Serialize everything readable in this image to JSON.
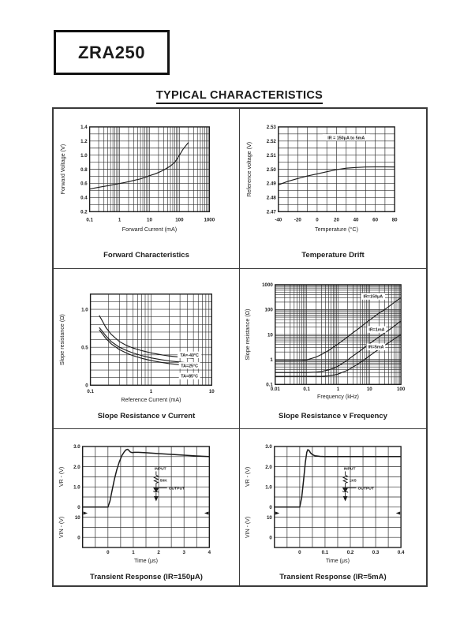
{
  "page": {
    "part_number": "ZRA250",
    "section_title": "TYPICAL CHARACTERISTICS"
  },
  "colors": {
    "ink": "#1c1c1c",
    "paper": "#ffffff"
  },
  "chart_data": [
    {
      "id": "forward-characteristics",
      "type": "line",
      "title": "Forward Characteristics",
      "xlabel": "Forward Current (mA)",
      "ylabel": "Forward Voltage (V)",
      "x_axis": {
        "scale": "log",
        "min": 0.1,
        "max": 1000,
        "ticks": [
          {
            "v": 0.1,
            "t": "0.1"
          },
          {
            "v": 1,
            "t": "1"
          },
          {
            "v": 10,
            "t": "10"
          },
          {
            "v": 100,
            "t": "100"
          },
          {
            "v": 1000,
            "t": "1000"
          }
        ]
      },
      "y_axis": {
        "scale": "linear",
        "min": 0.2,
        "max": 1.4,
        "step": 0.1,
        "ticks": [
          {
            "v": 0.2,
            "t": "0.2"
          },
          {
            "v": 0.4,
            "t": "0.4"
          },
          {
            "v": 0.6,
            "t": "0.6"
          },
          {
            "v": 0.8,
            "t": "0.8"
          },
          {
            "v": 1.0,
            "t": "1.0"
          },
          {
            "v": 1.2,
            "t": "1.2"
          },
          {
            "v": 1.4,
            "t": "1.4"
          }
        ]
      },
      "series": [
        {
          "name": "forward-voltage",
          "points": [
            [
              0.1,
              0.52
            ],
            [
              0.15,
              0.535
            ],
            [
              0.2,
              0.545
            ],
            [
              0.3,
              0.558
            ],
            [
              0.5,
              0.575
            ],
            [
              0.7,
              0.588
            ],
            [
              1,
              0.6
            ],
            [
              1.5,
              0.613
            ],
            [
              2,
              0.625
            ],
            [
              3,
              0.643
            ],
            [
              5,
              0.665
            ],
            [
              7,
              0.685
            ],
            [
              10,
              0.71
            ],
            [
              15,
              0.733
            ],
            [
              20,
              0.755
            ],
            [
              30,
              0.79
            ],
            [
              50,
              0.845
            ],
            [
              70,
              0.9
            ],
            [
              100,
              1.0
            ],
            [
              130,
              1.08
            ],
            [
              160,
              1.13
            ],
            [
              200,
              1.18
            ]
          ]
        }
      ]
    },
    {
      "id": "temperature-drift",
      "type": "line",
      "title": "Temperature Drift",
      "xlabel": "Temperature (°C)",
      "ylabel": "Reference voltage (V)",
      "x_axis": {
        "scale": "linear",
        "min": -40,
        "max": 80,
        "step": 10,
        "ticks": [
          {
            "v": -40,
            "t": "-40"
          },
          {
            "v": -20,
            "t": "-20"
          },
          {
            "v": 0,
            "t": "0"
          },
          {
            "v": 20,
            "t": "20"
          },
          {
            "v": 40,
            "t": "40"
          },
          {
            "v": 60,
            "t": "60"
          },
          {
            "v": 80,
            "t": "80"
          }
        ]
      },
      "y_axis": {
        "scale": "linear",
        "min": 2.47,
        "max": 2.53,
        "step": 0.005,
        "ticks": [
          {
            "v": 2.47,
            "t": "2.47"
          },
          {
            "v": 2.48,
            "t": "2.48"
          },
          {
            "v": 2.49,
            "t": "2.49"
          },
          {
            "v": 2.5,
            "t": "2.50"
          },
          {
            "v": 2.51,
            "t": "2.51"
          },
          {
            "v": 2.52,
            "t": "2.52"
          },
          {
            "v": 2.53,
            "t": "2.53"
          }
        ]
      },
      "annotations": [
        {
          "t": "IR = 150μA to 5mA",
          "x": 30,
          "y": 2.5225
        }
      ],
      "series": [
        {
          "name": "reference-voltage",
          "points": [
            [
              -40,
              2.489
            ],
            [
              -30,
              2.4915
            ],
            [
              -20,
              2.4935
            ],
            [
              -10,
              2.4953
            ],
            [
              0,
              2.4968
            ],
            [
              10,
              2.4983
            ],
            [
              20,
              2.4997
            ],
            [
              30,
              2.5008
            ],
            [
              40,
              2.5013
            ],
            [
              50,
              2.5016
            ],
            [
              60,
              2.5017
            ],
            [
              70,
              2.5017
            ],
            [
              80,
              2.5016
            ]
          ]
        }
      ]
    },
    {
      "id": "slope-resistance-v-current",
      "type": "line",
      "title": "Slope Resistance v Current",
      "xlabel": "Reference Current (mA)",
      "ylabel": "Slope resistance  (Ω)",
      "x_axis": {
        "scale": "log",
        "min": 0.1,
        "max": 10,
        "ticks": [
          {
            "v": 0.1,
            "t": "0.1"
          },
          {
            "v": 1,
            "t": "1"
          },
          {
            "v": 10,
            "t": "10"
          }
        ]
      },
      "y_axis": {
        "scale": "linear",
        "min": 0,
        "max": 1.2,
        "step": 0.1,
        "ticks": [
          {
            "v": 0,
            "t": "0"
          },
          {
            "v": 0.5,
            "t": "0.5"
          },
          {
            "v": 1.0,
            "t": "1.0"
          }
        ]
      },
      "labels": [
        {
          "t": "TA=-40°C",
          "x": 4.3,
          "y": 0.4
        },
        {
          "t": "TA=25°C",
          "x": 4.3,
          "y": 0.26
        },
        {
          "t": "TA=85°C",
          "x": 4.3,
          "y": 0.12
        }
      ],
      "series": [
        {
          "name": "ta-minus-40c",
          "points": [
            [
              0.14,
              0.92
            ],
            [
              0.18,
              0.76
            ],
            [
              0.22,
              0.67
            ],
            [
              0.3,
              0.575
            ],
            [
              0.4,
              0.52
            ],
            [
              0.5,
              0.49
            ],
            [
              0.7,
              0.455
            ],
            [
              1,
              0.425
            ],
            [
              1.5,
              0.4
            ],
            [
              2,
              0.385
            ],
            [
              3,
              0.37
            ],
            [
              4,
              0.36
            ],
            [
              5,
              0.355
            ]
          ]
        },
        {
          "name": "ta-25c",
          "points": [
            [
              0.14,
              0.76
            ],
            [
              0.18,
              0.65
            ],
            [
              0.22,
              0.575
            ],
            [
              0.3,
              0.5
            ],
            [
              0.4,
              0.455
            ],
            [
              0.5,
              0.425
            ],
            [
              0.7,
              0.39
            ],
            [
              1,
              0.36
            ],
            [
              1.5,
              0.335
            ],
            [
              2,
              0.32
            ],
            [
              3,
              0.305
            ],
            [
              4,
              0.295
            ],
            [
              5,
              0.29
            ]
          ]
        },
        {
          "name": "ta-85c",
          "points": [
            [
              0.14,
              0.73
            ],
            [
              0.18,
              0.615
            ],
            [
              0.22,
              0.545
            ],
            [
              0.3,
              0.47
            ],
            [
              0.4,
              0.42
            ],
            [
              0.5,
              0.39
            ],
            [
              0.7,
              0.355
            ],
            [
              1,
              0.325
            ],
            [
              1.5,
              0.3
            ],
            [
              2,
              0.285
            ],
            [
              3,
              0.27
            ],
            [
              4,
              0.26
            ],
            [
              5,
              0.255
            ]
          ]
        }
      ]
    },
    {
      "id": "slope-resistance-v-frequency",
      "type": "line",
      "title": "Slope Resistance v Frequency",
      "xlabel": "Frequency (kHz)",
      "ylabel": "Slope resistance  (Ω)",
      "x_axis": {
        "scale": "log",
        "min": 0.01,
        "max": 100,
        "ticks": [
          {
            "v": 0.01,
            "t": "0.01"
          },
          {
            "v": 0.1,
            "t": "0.1"
          },
          {
            "v": 1,
            "t": "1"
          },
          {
            "v": 10,
            "t": "10"
          },
          {
            "v": 100,
            "t": "100"
          }
        ]
      },
      "y_axis": {
        "scale": "log",
        "min": 0.1,
        "max": 1000,
        "ticks": [
          {
            "v": 0.1,
            "t": "0.1"
          },
          {
            "v": 1,
            "t": "1"
          },
          {
            "v": 10,
            "t": "10"
          },
          {
            "v": 100,
            "t": "100"
          },
          {
            "v": 1000,
            "t": "1000"
          }
        ]
      },
      "labels": [
        {
          "t": "IR=150μA",
          "x": 13,
          "y": 340
        },
        {
          "t": "IR=1mA",
          "x": 17,
          "y": 16
        },
        {
          "t": "IR=5mA",
          "x": 16,
          "y": 3.2
        }
      ],
      "series": [
        {
          "name": "ir-150ua",
          "points": [
            [
              0.01,
              0.9
            ],
            [
              0.03,
              0.9
            ],
            [
              0.07,
              0.92
            ],
            [
              0.1,
              0.97
            ],
            [
              0.2,
              1.25
            ],
            [
              0.3,
              1.6
            ],
            [
              0.5,
              2.3
            ],
            [
              0.7,
              3.1
            ],
            [
              1,
              4.2
            ],
            [
              2,
              8
            ],
            [
              3,
              12
            ],
            [
              5,
              19
            ],
            [
              7,
              27
            ],
            [
              10,
              38
            ],
            [
              20,
              72
            ],
            [
              30,
              100
            ],
            [
              50,
              160
            ],
            [
              70,
              220
            ],
            [
              100,
              300
            ]
          ]
        },
        {
          "name": "ir-1ma",
          "points": [
            [
              0.01,
              0.3
            ],
            [
              0.1,
              0.3
            ],
            [
              0.2,
              0.31
            ],
            [
              0.3,
              0.33
            ],
            [
              0.5,
              0.38
            ],
            [
              0.7,
              0.44
            ],
            [
              1,
              0.54
            ],
            [
              2,
              0.95
            ],
            [
              3,
              1.4
            ],
            [
              5,
              2.2
            ],
            [
              7,
              3.1
            ],
            [
              10,
              4.3
            ],
            [
              20,
              8
            ],
            [
              30,
              11.5
            ],
            [
              50,
              18
            ],
            [
              70,
              25
            ],
            [
              100,
              35
            ]
          ]
        },
        {
          "name": "ir-5ma",
          "points": [
            [
              0.01,
              0.21
            ],
            [
              0.3,
              0.21
            ],
            [
              0.5,
              0.22
            ],
            [
              0.7,
              0.235
            ],
            [
              1,
              0.26
            ],
            [
              2,
              0.37
            ],
            [
              3,
              0.5
            ],
            [
              5,
              0.75
            ],
            [
              7,
              1.0
            ],
            [
              10,
              1.4
            ],
            [
              20,
              2.6
            ],
            [
              30,
              3.7
            ],
            [
              50,
              5.6
            ],
            [
              70,
              7.5
            ],
            [
              100,
              10
            ]
          ]
        }
      ]
    },
    {
      "id": "transient-response-150ua",
      "type": "transient",
      "title": "Transient Response (IR=150μA)",
      "xlabel": "Time (μs)",
      "vr_label": "VR - (V)",
      "vin_label": "VIN - (V)",
      "x": {
        "min": -1,
        "max": 4,
        "step": 0.5,
        "ticks": [
          {
            "v": 0,
            "t": "0"
          },
          {
            "v": 1,
            "t": "1"
          },
          {
            "v": 2,
            "t": "2"
          },
          {
            "v": 3,
            "t": "3"
          },
          {
            "v": 4,
            "t": "4"
          }
        ]
      },
      "vr_ticks": [
        {
          "v": 3,
          "t": "3.0"
        },
        {
          "v": 2,
          "t": "2.0"
        },
        {
          "v": 1,
          "t": "1.0"
        },
        {
          "v": 0,
          "t": "0"
        }
      ],
      "vin_ticks": [
        {
          "v": 10,
          "t": "10"
        },
        {
          "v": 0,
          "t": "0"
        }
      ],
      "vr_series": [
        [
          -1,
          0
        ],
        [
          0,
          0
        ],
        [
          0.08,
          0.3
        ],
        [
          0.15,
          0.75
        ],
        [
          0.25,
          1.35
        ],
        [
          0.35,
          1.85
        ],
        [
          0.45,
          2.25
        ],
        [
          0.55,
          2.55
        ],
        [
          0.65,
          2.75
        ],
        [
          0.72,
          2.84
        ],
        [
          0.78,
          2.86
        ],
        [
          0.83,
          2.8
        ],
        [
          0.88,
          2.73
        ],
        [
          0.95,
          2.7
        ],
        [
          1.05,
          2.71
        ],
        [
          1.2,
          2.71
        ],
        [
          1.5,
          2.69
        ],
        [
          2,
          2.65
        ],
        [
          2.5,
          2.61
        ],
        [
          3,
          2.57
        ],
        [
          3.5,
          2.53
        ],
        [
          4,
          2.5
        ]
      ],
      "circuit": {
        "input": "INPUT",
        "resistor": "50K",
        "output": "OUTPUT",
        "fx": 0.58,
        "fy": 0.23
      }
    },
    {
      "id": "transient-response-5ma",
      "type": "transient",
      "title": "Transient Response (IR=5mA)",
      "xlabel": "Time (μs)",
      "vr_label": "VR - (V)",
      "vin_label": "VIN - (V)",
      "x": {
        "min": -0.1,
        "max": 0.4,
        "step": 0.05,
        "ticks": [
          {
            "v": 0,
            "t": "0"
          },
          {
            "v": 0.1,
            "t": "0.1"
          },
          {
            "v": 0.2,
            "t": "0.2"
          },
          {
            "v": 0.3,
            "t": "0.3"
          },
          {
            "v": 0.4,
            "t": "0.4"
          }
        ]
      },
      "vr_ticks": [
        {
          "v": 3,
          "t": "3.0"
        },
        {
          "v": 2,
          "t": "2.0"
        },
        {
          "v": 1,
          "t": "1.0"
        },
        {
          "v": 0,
          "t": "0"
        }
      ],
      "vin_ticks": [
        {
          "v": 10,
          "t": "10"
        },
        {
          "v": 0,
          "t": "0"
        }
      ],
      "vr_series": [
        [
          -0.1,
          0
        ],
        [
          0,
          0
        ],
        [
          0.008,
          0.5
        ],
        [
          0.015,
          1.3
        ],
        [
          0.022,
          2.2
        ],
        [
          0.028,
          2.72
        ],
        [
          0.032,
          2.84
        ],
        [
          0.037,
          2.8
        ],
        [
          0.043,
          2.68
        ],
        [
          0.05,
          2.6
        ],
        [
          0.06,
          2.54
        ],
        [
          0.08,
          2.51
        ],
        [
          0.1,
          2.5
        ],
        [
          0.15,
          2.5
        ],
        [
          0.2,
          2.5
        ],
        [
          0.3,
          2.5
        ],
        [
          0.4,
          2.5
        ]
      ],
      "circuit": {
        "input": "INPUT",
        "resistor": "1K5",
        "output": "OUTPUT",
        "fx": 0.56,
        "fy": 0.23
      }
    }
  ]
}
